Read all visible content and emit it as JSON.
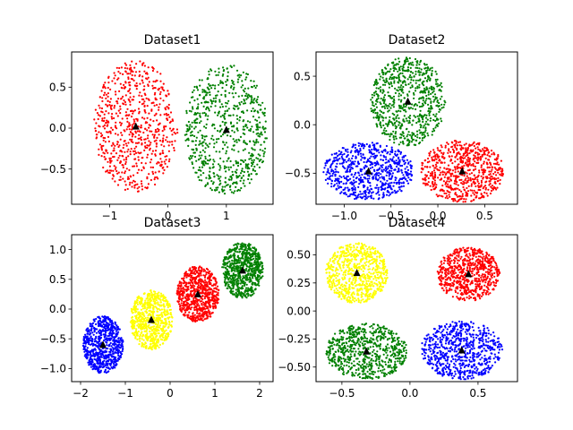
{
  "chart_data": [
    {
      "type": "scatter",
      "title": "Dataset1",
      "xlim": [
        -1.65,
        1.8
      ],
      "ylim": [
        -0.93,
        0.93
      ],
      "xticks": [
        -1,
        0,
        1
      ],
      "xtick_labels": [
        "−1",
        "0",
        "1"
      ],
      "yticks": [
        -0.5,
        0.0,
        0.5
      ],
      "ytick_labels": [
        "−0.5",
        "0.0",
        "0.5"
      ],
      "clusters": [
        {
          "color": "#ff0000",
          "center": [
            -0.55,
            0.02
          ],
          "spread": [
            0.72,
            0.8
          ],
          "shape": "ellipse",
          "centroid": [
            -0.55,
            0.02
          ]
        },
        {
          "color": "#008000",
          "center": [
            1.0,
            -0.02
          ],
          "spread": [
            0.72,
            0.8
          ],
          "shape": "ring",
          "centroid": [
            1.0,
            -0.02
          ]
        }
      ]
    },
    {
      "type": "scatter",
      "title": "Dataset2",
      "xlim": [
        -1.3,
        0.85
      ],
      "ylim": [
        -0.82,
        0.75
      ],
      "xticks": [
        -1.0,
        -0.5,
        0.0,
        0.5
      ],
      "xtick_labels": [
        "−1.0",
        "−0.5",
        "0.0",
        "0.5"
      ],
      "yticks": [
        -0.5,
        0.0,
        0.5
      ],
      "ytick_labels": [
        "−0.5",
        "0.0",
        "0.5"
      ],
      "clusters": [
        {
          "color": "#008000",
          "center": [
            -0.32,
            0.24
          ],
          "spread": [
            0.4,
            0.46
          ],
          "shape": "ellipse",
          "centroid": [
            -0.32,
            0.24
          ]
        },
        {
          "color": "#0000ff",
          "center": [
            -0.74,
            -0.48
          ],
          "spread": [
            0.48,
            0.3
          ],
          "shape": "ellipse",
          "centroid": [
            -0.74,
            -0.48
          ]
        },
        {
          "color": "#ff0000",
          "center": [
            0.26,
            -0.48
          ],
          "spread": [
            0.45,
            0.32
          ],
          "shape": "ellipse",
          "centroid": [
            0.26,
            -0.48
          ]
        }
      ]
    },
    {
      "type": "scatter",
      "title": "Dataset3",
      "xlim": [
        -2.2,
        2.3
      ],
      "ylim": [
        -1.22,
        1.25
      ],
      "xticks": [
        -2,
        -1,
        0,
        1,
        2
      ],
      "xtick_labels": [
        "−2",
        "−1",
        "0",
        "1",
        "2"
      ],
      "yticks": [
        -1.0,
        -0.5,
        0.0,
        0.5,
        1.0
      ],
      "ytick_labels": [
        "−1.0",
        "−0.5",
        "0.0",
        "0.5",
        "1.0"
      ],
      "clusters": [
        {
          "color": "#0000ff",
          "center": [
            -1.5,
            -0.6
          ],
          "spread": [
            0.45,
            0.48
          ],
          "shape": "ellipse",
          "centroid": [
            -1.5,
            -0.6
          ]
        },
        {
          "color": "#ffff00",
          "center": [
            -0.42,
            -0.18
          ],
          "spread": [
            0.48,
            0.5
          ],
          "shape": "ellipse",
          "centroid": [
            -0.42,
            -0.18
          ]
        },
        {
          "color": "#ff0000",
          "center": [
            0.62,
            0.25
          ],
          "spread": [
            0.48,
            0.47
          ],
          "shape": "ellipse",
          "centroid": [
            0.62,
            0.25
          ]
        },
        {
          "color": "#008000",
          "center": [
            1.62,
            0.65
          ],
          "spread": [
            0.46,
            0.47
          ],
          "shape": "ellipse",
          "centroid": [
            1.62,
            0.65
          ]
        }
      ]
    },
    {
      "type": "scatter",
      "title": "Dataset4",
      "xlim": [
        -0.69,
        0.79
      ],
      "ylim": [
        -0.63,
        0.68
      ],
      "xticks": [
        -0.5,
        0.0,
        0.5
      ],
      "xtick_labels": [
        "−0.5",
        "0.0",
        "0.5"
      ],
      "yticks": [
        -0.5,
        -0.25,
        0.0,
        0.25,
        0.5
      ],
      "ytick_labels": [
        "−0.50",
        "−0.25",
        "0.00",
        "0.25",
        "0.50"
      ],
      "clusters": [
        {
          "color": "#ffff00",
          "center": [
            -0.39,
            0.34
          ],
          "spread": [
            0.23,
            0.27
          ],
          "shape": "ellipse",
          "centroid": [
            -0.39,
            0.34
          ]
        },
        {
          "color": "#ff0000",
          "center": [
            0.43,
            0.33
          ],
          "spread": [
            0.23,
            0.24
          ],
          "shape": "ellipse",
          "centroid": [
            0.43,
            0.33
          ]
        },
        {
          "color": "#008000",
          "center": [
            -0.32,
            -0.36
          ],
          "spread": [
            0.3,
            0.25
          ],
          "shape": "ellipse",
          "centroid": [
            -0.32,
            -0.36
          ]
        },
        {
          "color": "#0000ff",
          "center": [
            0.38,
            -0.35
          ],
          "spread": [
            0.3,
            0.26
          ],
          "shape": "ellipse",
          "centroid": [
            0.38,
            -0.35
          ]
        }
      ]
    }
  ]
}
